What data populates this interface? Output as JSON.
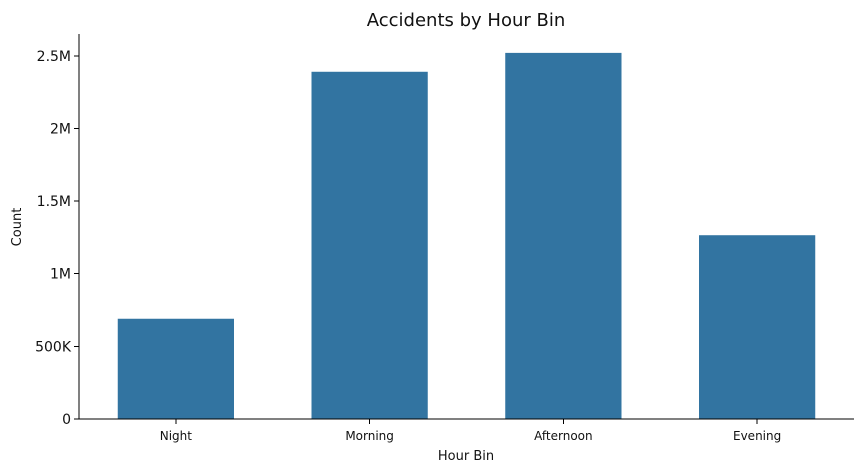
{
  "chart_data": {
    "type": "bar",
    "title": "Accidents by Hour Bin",
    "xlabel": "Hour Bin",
    "ylabel": "Count",
    "categories": [
      "Night",
      "Morning",
      "Afternoon",
      "Evening"
    ],
    "values": [
      690000,
      2390000,
      2520000,
      1265000
    ],
    "ylim": [
      0,
      2650000
    ],
    "y_ticks": [
      {
        "value": 0,
        "label": "0"
      },
      {
        "value": 500000,
        "label": "500K"
      },
      {
        "value": 1000000,
        "label": "1M"
      },
      {
        "value": 1500000,
        "label": "1.5M"
      },
      {
        "value": 2000000,
        "label": "2M"
      },
      {
        "value": 2500000,
        "label": "2.5M"
      }
    ],
    "bar_color": "#3274a1",
    "grid": false,
    "legend": "none"
  }
}
